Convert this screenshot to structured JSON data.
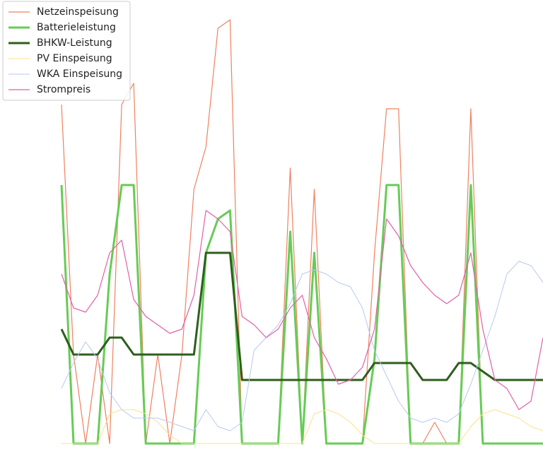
{
  "chart_data": {
    "type": "line",
    "legend": "upper left",
    "xlim": [
      0,
      80
    ],
    "ylim": [
      0,
      100
    ],
    "x": [
      0,
      2,
      4,
      6,
      8,
      10,
      12,
      14,
      16,
      18,
      20,
      22,
      24,
      26,
      28,
      30,
      32,
      34,
      36,
      38,
      40,
      42,
      44,
      46,
      48,
      50,
      52,
      54,
      56,
      58,
      60,
      62,
      64,
      66,
      68,
      70,
      72,
      74,
      76,
      78,
      80
    ],
    "series": [
      {
        "name": "Netzeinspeisung",
        "color": "#f08060",
        "line_width": 1.2,
        "values": [
          80,
          21,
          0,
          21,
          0,
          80,
          85,
          0,
          21,
          0,
          21,
          60,
          70,
          98,
          100,
          0,
          0,
          0,
          0,
          65,
          0,
          60,
          0,
          0,
          0,
          0,
          45,
          79,
          79,
          0,
          0,
          5,
          0,
          0,
          79,
          0,
          0,
          0,
          0,
          0,
          0
        ]
      },
      {
        "name": "Batterieleistung",
        "color": "#66cc55",
        "line_width": 3,
        "values": [
          61,
          0,
          0,
          0,
          40,
          61,
          61,
          0,
          0,
          0,
          0,
          0,
          45,
          53,
          55,
          0,
          0,
          0,
          0,
          50,
          0,
          45,
          0,
          0,
          0,
          0,
          20,
          61,
          61,
          0,
          0,
          0,
          0,
          0,
          61,
          0,
          0,
          0,
          0,
          0,
          0
        ]
      },
      {
        "name": "BHKW-Leistung",
        "color": "#2e5e1e",
        "line_width": 3,
        "values": [
          27,
          21,
          21,
          21,
          25,
          25,
          21,
          21,
          21,
          21,
          21,
          21,
          45,
          45,
          45,
          15,
          15,
          15,
          15,
          15,
          15,
          15,
          15,
          15,
          15,
          15,
          19,
          19,
          19,
          19,
          15,
          15,
          15,
          19,
          19,
          17,
          15,
          15,
          15,
          15,
          15
        ]
      },
      {
        "name": "PV Einspeisung",
        "color": "#ffe08a",
        "line_width": 1,
        "values": [
          0,
          0,
          0,
          0,
          7,
          8,
          8,
          7,
          5,
          2,
          0,
          0,
          0,
          0,
          0,
          0,
          0,
          0,
          0,
          0,
          0,
          7,
          8,
          7,
          5,
          2,
          0,
          0,
          0,
          0,
          0,
          0,
          0,
          0,
          4,
          7,
          8,
          7,
          6,
          4,
          3
        ]
      },
      {
        "name": "WKA Einspeisung",
        "color": "#b8c8f0",
        "line_width": 1,
        "values": [
          13,
          19,
          24,
          20,
          12,
          8,
          6,
          6,
          6,
          5,
          4,
          3,
          8,
          4,
          3,
          5,
          22,
          25,
          28,
          33,
          40,
          41,
          40,
          38,
          37,
          32,
          22,
          16,
          10,
          6,
          5,
          6,
          5,
          7,
          14,
          22,
          30,
          40,
          43,
          42,
          38
        ]
      },
      {
        "name": "Strompreis",
        "color": "#e060a8",
        "line_width": 1.2,
        "values": [
          40,
          32,
          31,
          35,
          45,
          48,
          34,
          30,
          28,
          26,
          27,
          35,
          55,
          53,
          50,
          30,
          28,
          25,
          27,
          32,
          35,
          25,
          20,
          14,
          15,
          18,
          27,
          53,
          49,
          42,
          38,
          35,
          33,
          35,
          45,
          27,
          15,
          13,
          8,
          10,
          25
        ]
      }
    ]
  }
}
